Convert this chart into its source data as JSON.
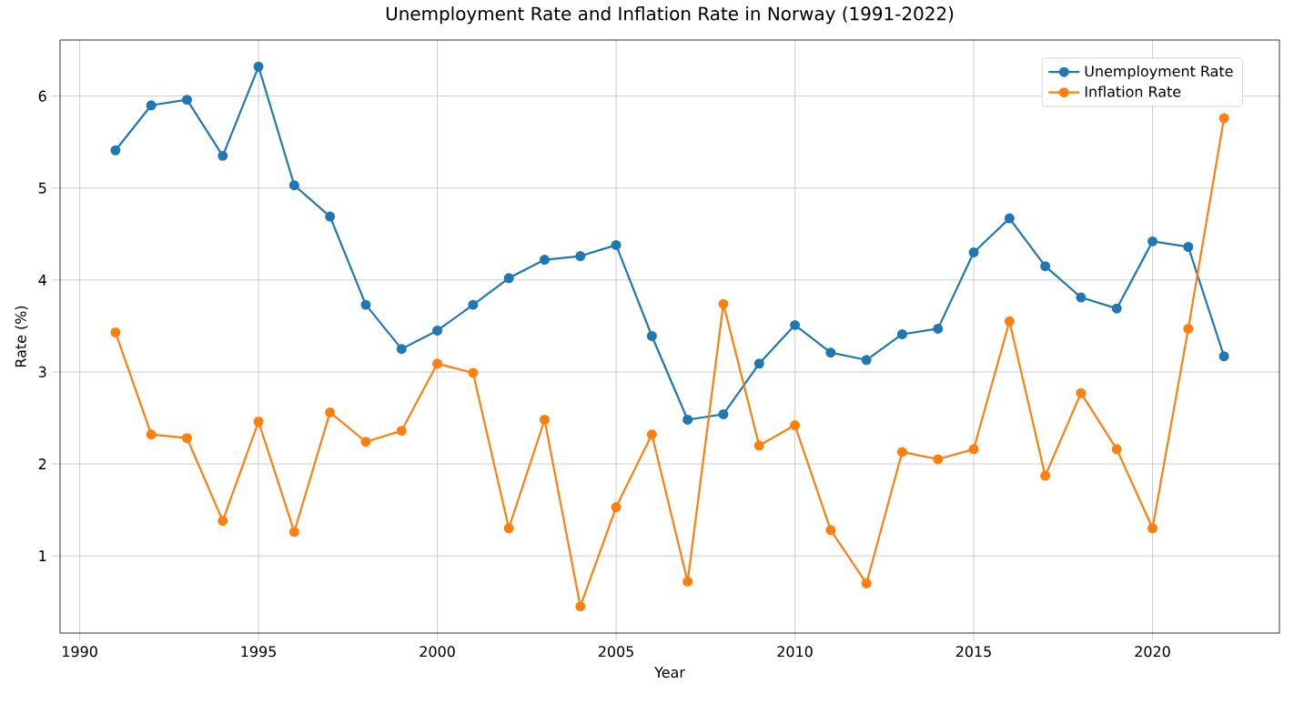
{
  "chart_data": {
    "type": "line",
    "title": "Unemployment Rate and Inflation Rate in Norway (1991-2022)",
    "xlabel": "Year",
    "ylabel": "Rate (%)",
    "x": [
      1991,
      1992,
      1993,
      1994,
      1995,
      1996,
      1997,
      1998,
      1999,
      2000,
      2001,
      2002,
      2003,
      2004,
      2005,
      2006,
      2007,
      2008,
      2009,
      2010,
      2011,
      2012,
      2013,
      2014,
      2015,
      2016,
      2017,
      2018,
      2019,
      2020,
      2021,
      2022
    ],
    "series": [
      {
        "name": "Unemployment Rate",
        "color": "#1f77b4",
        "values": [
          5.41,
          5.9,
          5.96,
          5.35,
          6.32,
          5.03,
          4.69,
          3.73,
          3.25,
          3.45,
          3.73,
          4.02,
          4.22,
          4.26,
          4.38,
          3.39,
          2.48,
          2.54,
          3.09,
          3.51,
          3.21,
          3.13,
          3.41,
          3.47,
          4.3,
          4.67,
          4.15,
          3.81,
          3.69,
          4.42,
          4.36,
          3.17
        ]
      },
      {
        "name": "Inflation Rate",
        "color": "#ff7f0e",
        "values": [
          3.43,
          2.32,
          2.28,
          1.38,
          2.46,
          1.26,
          2.56,
          2.24,
          2.36,
          3.09,
          2.99,
          1.3,
          2.48,
          0.45,
          1.53,
          2.32,
          0.72,
          3.74,
          2.2,
          2.42,
          1.28,
          0.7,
          2.13,
          2.05,
          2.16,
          3.55,
          1.87,
          2.77,
          2.16,
          1.3,
          3.47,
          5.76
        ]
      }
    ],
    "xlim": [
      1989.45,
      2023.55
    ],
    "ylim": [
      0.16,
      6.61
    ],
    "xticks": [
      1990,
      1995,
      2000,
      2005,
      2010,
      2015,
      2020
    ],
    "yticks": [
      1,
      2,
      3,
      4,
      5,
      6
    ],
    "grid": true,
    "legend": "top right",
    "marker": "circle",
    "line_style": "solid"
  }
}
